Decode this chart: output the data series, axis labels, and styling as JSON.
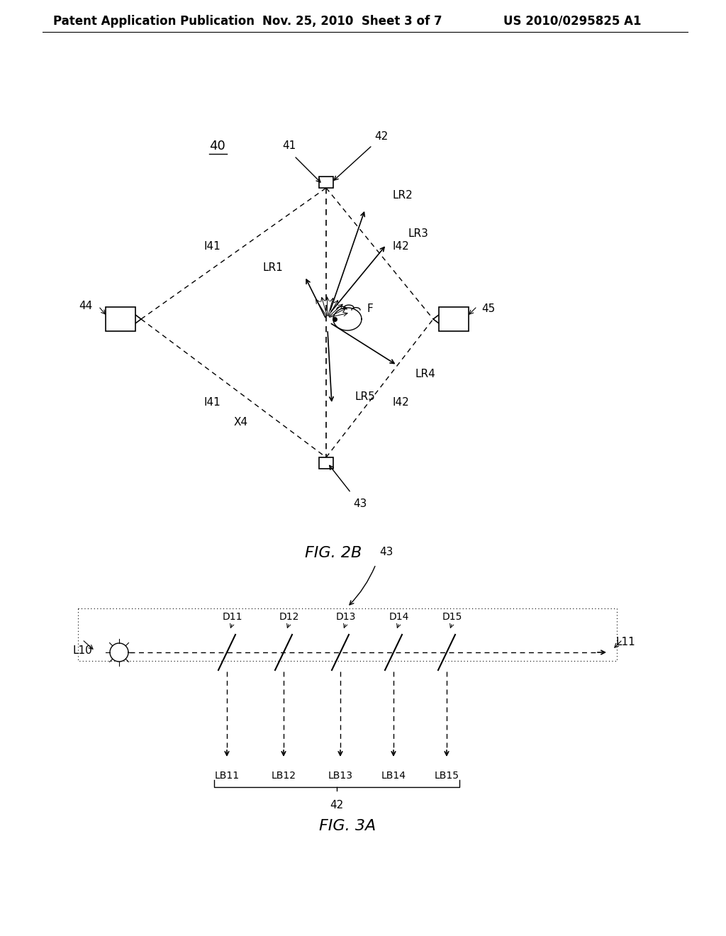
{
  "bg_color": "#ffffff",
  "line_color": "#000000",
  "header_text": "Patent Application Publication",
  "header_date": "Nov. 25, 2010  Sheet 3 of 7",
  "header_patent": "US 2010/0295825 A1",
  "fig2b_label": "FIG. 2B",
  "fig3a_label": "FIG. 3A",
  "label_40": "40",
  "label_41": "41",
  "label_42_top": "42",
  "label_43_top": "43",
  "label_44": "44",
  "label_45": "45",
  "label_F": "F",
  "label_LR1": "LR1",
  "label_LR2": "LR2",
  "label_LR3": "LR3",
  "label_LR4": "LR4",
  "label_LR5": "LR5",
  "label_I41_top": "I41",
  "label_I41_bot": "I41",
  "label_I42_top": "I42",
  "label_I42_bot": "I42",
  "label_X4": "X4",
  "label_L10": "L10",
  "label_L11": "L11",
  "label_D11": "D11",
  "label_D12": "D12",
  "label_D13": "D13",
  "label_D14": "D14",
  "label_D15": "D15",
  "label_LB11": "LB11",
  "label_LB12": "LB12",
  "label_LB13": "LB13",
  "label_LB14": "LB14",
  "label_LB15": "LB15",
  "label_42_bot": "42"
}
